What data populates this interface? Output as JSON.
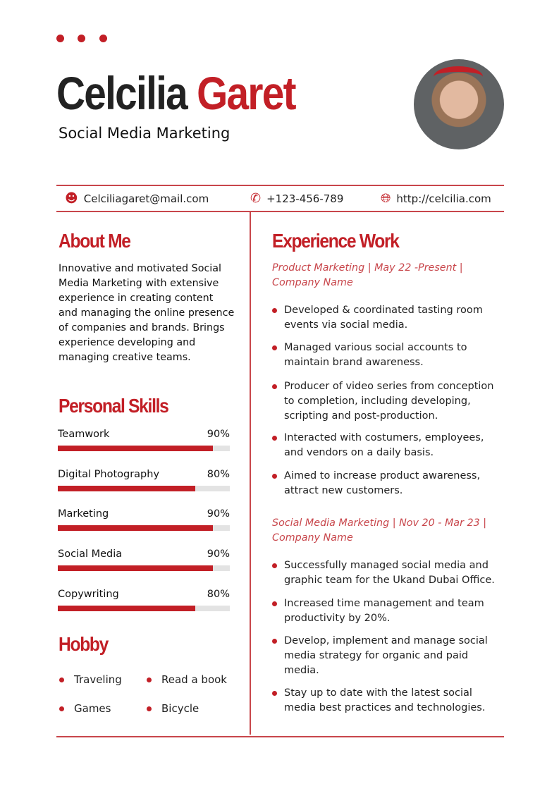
{
  "header": {
    "first_name": "Celcilia",
    "last_name": "Garet",
    "title": "Social Media Marketing"
  },
  "contact": {
    "email": "Celciliagaret@mail.com",
    "phone": "+123-456-789",
    "website": "http://celcilia.com"
  },
  "colors": {
    "accent": "#c21f26"
  },
  "about": {
    "heading": "About Me",
    "text": "Innovative and motivated Social Media Marketing with extensive experience in creating content and managing the online presence of companies and brands. Brings experience developing and managing creative teams."
  },
  "skills": {
    "heading": "Personal Skills",
    "items": [
      {
        "label": "Teamwork",
        "percent_label": "90%",
        "value": 90
      },
      {
        "label": "Digital Photography",
        "percent_label": "80%",
        "value": 80
      },
      {
        "label": "Marketing",
        "percent_label": "90%",
        "value": 90
      },
      {
        "label": "Social Media",
        "percent_label": "90%",
        "value": 90
      },
      {
        "label": "Copywriting",
        "percent_label": "80%",
        "value": 80
      }
    ]
  },
  "hobby": {
    "heading": "Hobby",
    "items": [
      "Traveling",
      "Read a book",
      "Games",
      "Bicycle"
    ]
  },
  "experience": {
    "heading": "Experience Work",
    "jobs": [
      {
        "title": "Product Marketing | May 22 -Present | Company Name",
        "bullets": [
          "Developed & coordinated tasting room events via social media.",
          "Managed various social accounts to maintain brand awareness.",
          "Producer of video series from conception to completion, including developing, scripting and post-production.",
          "Interacted with costumers, employees, and vendors on a daily basis.",
          "Aimed to increase product awareness, attract new customers."
        ]
      },
      {
        "title": "Social Media Marketing | Nov 20 - Mar 23 | Company Name",
        "bullets": [
          "Successfully managed social media and graphic team for the Ukand Dubai Office.",
          "Increased time management and team productivity by 20%.",
          "Develop, implement and manage social media strategy for organic and paid media.",
          "Stay up to date with the latest social media best practices and technologies."
        ]
      }
    ]
  }
}
